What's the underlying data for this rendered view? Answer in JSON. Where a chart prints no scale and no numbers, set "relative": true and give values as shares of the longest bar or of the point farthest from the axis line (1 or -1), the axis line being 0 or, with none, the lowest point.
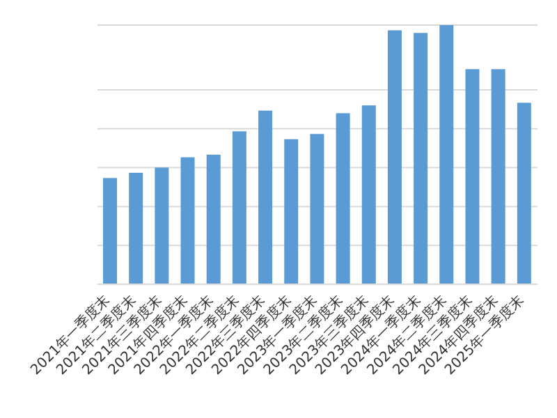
{
  "chart_data": {
    "type": "bar",
    "relative": true,
    "grid": "y",
    "color": "#5b9bd5",
    "categories": [
      "2021年一季度末",
      "2021年二季度末",
      "2021年三季度末",
      "2021年四季度末",
      "2022年一季度末",
      "2022年二季度末",
      "2022年三季度末",
      "2022年四季度末",
      "2023年一季度末",
      "2023年二季度末",
      "2023年三季度末",
      "2023年四季度末",
      "2024年一季度末",
      "2024年二季度末",
      "2024年三季度末",
      "2024年四季度末",
      "2025年一季度末"
    ],
    "values": [
      0.41,
      0.43,
      0.45,
      0.49,
      0.5,
      0.59,
      0.67,
      0.56,
      0.58,
      0.66,
      0.69,
      0.98,
      0.97,
      1,
      0.83,
      0.83,
      0.7
    ]
  }
}
